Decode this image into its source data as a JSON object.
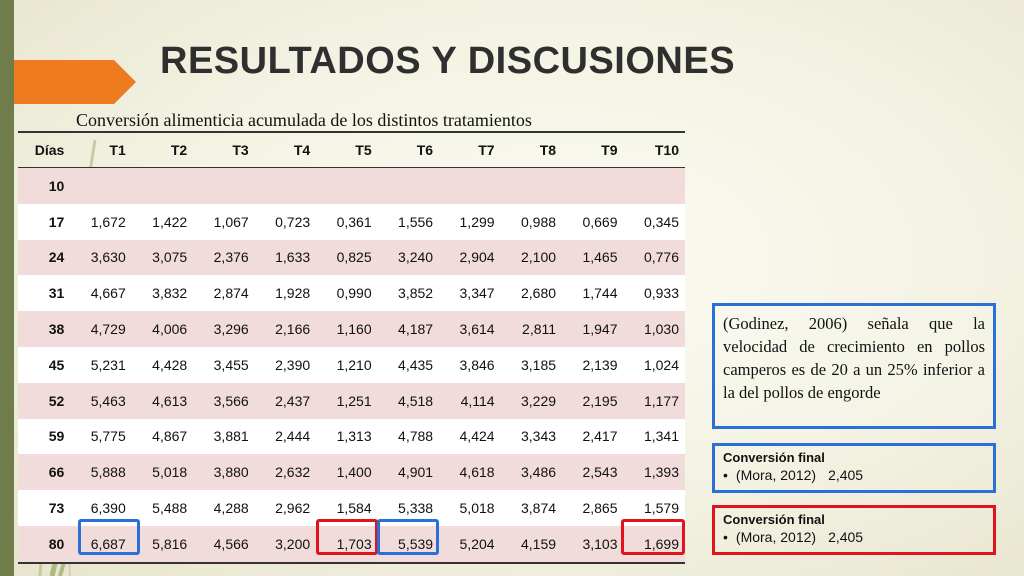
{
  "title": "RESULTADOS Y DISCUSIONES",
  "subtitle": "Conversión alimenticia acumulada de los distintos tratamientos",
  "table": {
    "headers": [
      "Días",
      "T1",
      "T2",
      "T3",
      "T4",
      "T5",
      "T6",
      "T7",
      "T8",
      "T9",
      "T10"
    ],
    "rows": [
      [
        "10",
        "",
        "",
        "",
        "",
        "",
        "",
        "",
        "",
        "",
        ""
      ],
      [
        "17",
        "1,672",
        "1,422",
        "1,067",
        "0,723",
        "0,361",
        "1,556",
        "1,299",
        "0,988",
        "0,669",
        "0,345"
      ],
      [
        "24",
        "3,630",
        "3,075",
        "2,376",
        "1,633",
        "0,825",
        "3,240",
        "2,904",
        "2,100",
        "1,465",
        "0,776"
      ],
      [
        "31",
        "4,667",
        "3,832",
        "2,874",
        "1,928",
        "0,990",
        "3,852",
        "3,347",
        "2,680",
        "1,744",
        "0,933"
      ],
      [
        "38",
        "4,729",
        "4,006",
        "3,296",
        "2,166",
        "1,160",
        "4,187",
        "3,614",
        "2,811",
        "1,947",
        "1,030"
      ],
      [
        "45",
        "5,231",
        "4,428",
        "3,455",
        "2,390",
        "1,210",
        "4,435",
        "3,846",
        "3,185",
        "2,139",
        "1,024"
      ],
      [
        "52",
        "5,463",
        "4,613",
        "3,566",
        "2,437",
        "1,251",
        "4,518",
        "4,114",
        "3,229",
        "2,195",
        "1,177"
      ],
      [
        "59",
        "5,775",
        "4,867",
        "3,881",
        "2,444",
        "1,313",
        "4,788",
        "4,424",
        "3,343",
        "2,417",
        "1,341"
      ],
      [
        "66",
        "5,888",
        "5,018",
        "3,880",
        "2,632",
        "1,400",
        "4,901",
        "4,618",
        "3,486",
        "2,543",
        "1,393"
      ],
      [
        "73",
        "6,390",
        "5,488",
        "4,288",
        "2,962",
        "1,584",
        "5,338",
        "5,018",
        "3,874",
        "2,865",
        "1,579"
      ],
      [
        "80",
        "6,687",
        "5,816",
        "4,566",
        "3,200",
        "1,703",
        "5,539",
        "5,204",
        "4,159",
        "3,103",
        "1,699"
      ]
    ]
  },
  "note": "(Godinez, 2006) señala que la velocidad de crecimiento en pollos camperos es de 20 a un 25% inferior a la del pollos de engorde",
  "conversion_blue": {
    "heading": "Conversión final",
    "bullet": "•",
    "source": "(Mora, 2012)",
    "value": "2,405"
  },
  "conversion_red": {
    "heading": "Conversión final",
    "bullet": "•",
    "source": "(Mora, 2012)",
    "value": "2,405"
  },
  "colors": {
    "highlight_blue": "#2b6fd8",
    "highlight_red": "#e0141c",
    "side_bar": "#6f7d4a",
    "accent": "#ee7b1f"
  }
}
